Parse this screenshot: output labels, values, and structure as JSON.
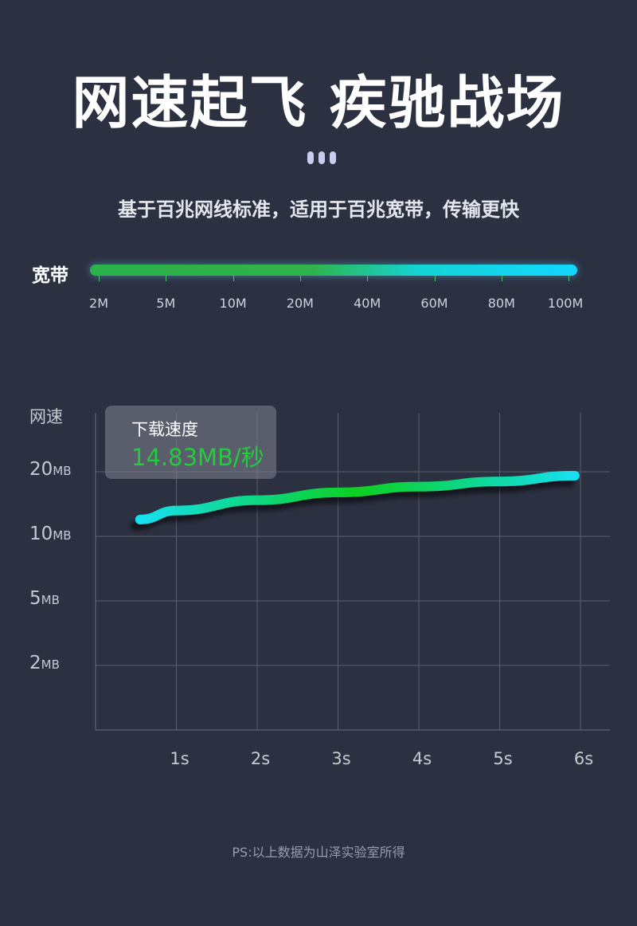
{
  "header": {
    "title": "网速起飞 疾驰战场",
    "subtitle": "基于百兆网线标准，适用于百兆宽带，传输更快"
  },
  "bandwidth": {
    "label": "宽带",
    "ticks": [
      "2M",
      "5M",
      "10M",
      "20M",
      "40M",
      "60M",
      "80M",
      "100M"
    ],
    "colors": [
      "#2bb24a",
      "#12d6ff"
    ]
  },
  "chart_data": {
    "type": "line",
    "ylabel": "网速",
    "y_ticks": [
      {
        "value": "20",
        "unit": "MB"
      },
      {
        "value": "10",
        "unit": "MB"
      },
      {
        "value": "5",
        "unit": "MB"
      },
      {
        "value": "2",
        "unit": "MB"
      }
    ],
    "x_ticks": [
      "1s",
      "2s",
      "3s",
      "4s",
      "5s",
      "6s"
    ],
    "x_range": [
      0,
      6
    ],
    "grid": true,
    "series": [
      {
        "points": [
          [
            0.55,
            12.6
          ],
          [
            1,
            14.0
          ],
          [
            2,
            15.6
          ],
          [
            3,
            16.8
          ],
          [
            4,
            17.7
          ],
          [
            5,
            18.5
          ],
          [
            5.93,
            19.4
          ]
        ],
        "colors": [
          "#12e0f0",
          "#10d020",
          "#12e0f0"
        ]
      }
    ],
    "tooltip": {
      "label": "下载速度",
      "value": "14.83MB/秒",
      "value_color": "#22cc3b"
    }
  },
  "footer": {
    "note": "PS:以上数据为山泽实验室所得"
  }
}
